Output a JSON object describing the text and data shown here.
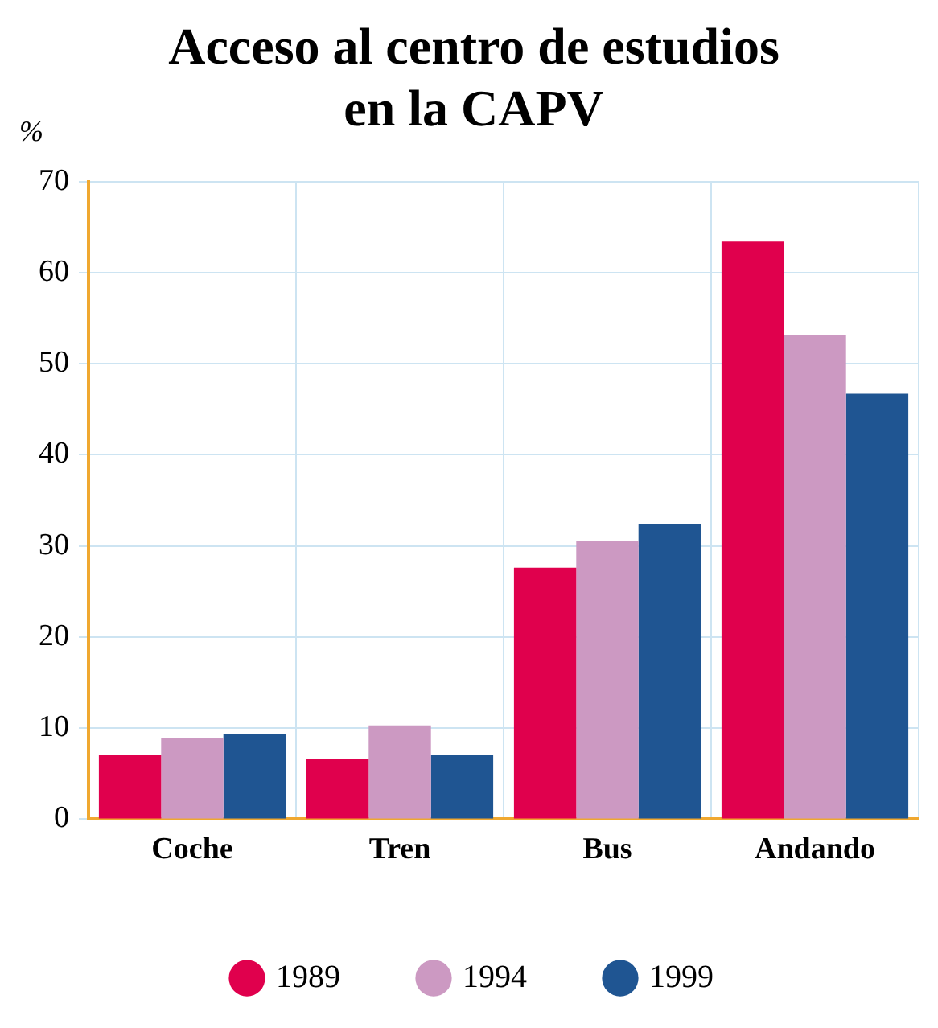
{
  "chart_data": {
    "type": "bar",
    "title": "Acceso al centro de estudios\nen la CAPV",
    "ylabel": "%",
    "categories": [
      "Coche",
      "Tren",
      "Bus",
      "Andando"
    ],
    "series": [
      {
        "name": "1989",
        "color": "#e0004d",
        "values": [
          7,
          6.6,
          27.6,
          63.4
        ]
      },
      {
        "name": "1994",
        "color": "#cc99c2",
        "values": [
          8.9,
          10.3,
          30.5,
          53.1
        ]
      },
      {
        "name": "1999",
        "color": "#1f5592",
        "values": [
          9.4,
          7,
          32.4,
          46.7
        ]
      }
    ],
    "ylim": [
      0,
      70
    ],
    "yticks": [
      0,
      10,
      20,
      30,
      40,
      50,
      60,
      70
    ],
    "grid": true,
    "legend": "bottom"
  }
}
